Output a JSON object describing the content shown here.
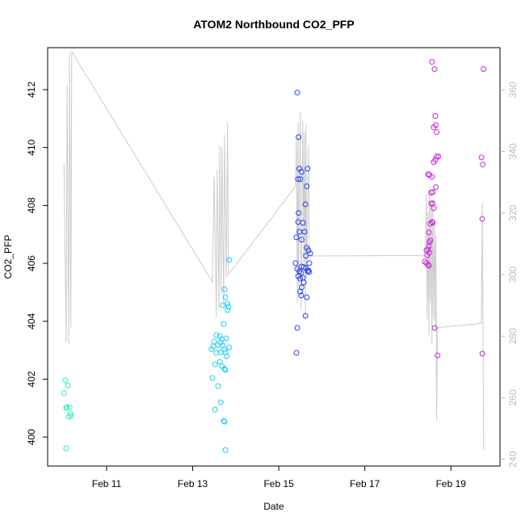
{
  "chart_data": {
    "type": "scatter",
    "title": "ATOM2 Northbound CO2_PFP",
    "x_label": "Date",
    "y_label": "CO2_PFP",
    "xlim": [
      9.63,
      20.14
    ],
    "xticks": [
      {
        "value": 11,
        "label": "Feb 11"
      },
      {
        "value": 13,
        "label": "Feb 13"
      },
      {
        "value": 15,
        "label": "Feb 15"
      },
      {
        "value": 17,
        "label": "Feb 17"
      },
      {
        "value": 19,
        "label": "Feb 19"
      }
    ],
    "ylim": [
      399.0,
      413.45
    ],
    "yticks": [
      400,
      402,
      404,
      406,
      408,
      410,
      412
    ],
    "y2lim": [
      237.8,
      373.7
    ],
    "y2ticks": [
      240,
      260,
      280,
      300,
      320,
      340,
      360
    ],
    "series": [
      {
        "color": "#33eec0",
        "x": [
          10.04,
          10.1,
          10.01,
          10.08,
          10.14,
          10.06,
          10.16,
          10.12,
          10.17,
          10.06
        ],
        "values": [
          401.96,
          401.79,
          401.51,
          401.03,
          401.03,
          401.01,
          400.81,
          400.7,
          400.73,
          399.61
        ]
      },
      {
        "color": "#22ccf0",
        "x": [
          13.85,
          13.74,
          13.76,
          13.7,
          13.81,
          13.81,
          13.83,
          13.72,
          13.55,
          13.63,
          13.68,
          13.78,
          13.5,
          13.48,
          13.59,
          13.65,
          13.7,
          13.44,
          13.55,
          13.65,
          13.74,
          13.85,
          13.79,
          13.52,
          13.68,
          13.76,
          13.76,
          13.63,
          13.74,
          13.46,
          13.59,
          13.65,
          13.52,
          13.72,
          13.74,
          13.76
        ],
        "values": [
          406.12,
          405.11,
          404.83,
          404.55,
          404.61,
          404.39,
          404.5,
          403.91,
          403.52,
          403.49,
          403.38,
          403.41,
          403.3,
          403.13,
          403.18,
          403.27,
          403.16,
          403.04,
          402.91,
          402.93,
          403.02,
          403.1,
          402.79,
          402.51,
          402.46,
          402.32,
          402.93,
          402.6,
          402.35,
          402.04,
          401.76,
          401.2,
          400.95,
          400.56,
          400.53,
          399.55
        ]
      },
      {
        "color": "#2244ee",
        "x": [
          15.43,
          15.46,
          15.48,
          15.53,
          15.67,
          15.45,
          15.5,
          15.65,
          15.62,
          15.46,
          15.45,
          15.56,
          15.48,
          15.6,
          15.53,
          15.41,
          15.65,
          15.69,
          15.63,
          15.73,
          15.71,
          15.39,
          15.53,
          15.58,
          15.63,
          15.43,
          15.48,
          15.67,
          15.52,
          15.71,
          15.45,
          15.69,
          15.56,
          15.5,
          15.58,
          15.53,
          15.5,
          15.52,
          15.65,
          15.62,
          15.43,
          15.41
        ],
        "values": [
          411.9,
          410.36,
          409.27,
          409.16,
          409.27,
          408.91,
          408.91,
          408.66,
          408.04,
          407.74,
          407.43,
          407.4,
          407.09,
          407.09,
          406.82,
          406.9,
          406.54,
          406.45,
          406.26,
          406.34,
          406.01,
          406.01,
          405.89,
          405.87,
          405.84,
          405.81,
          405.73,
          405.73,
          405.67,
          405.7,
          405.56,
          405.75,
          405.5,
          405.47,
          405.34,
          405.17,
          405.03,
          404.89,
          404.83,
          404.19,
          403.77,
          402.91
        ]
      },
      {
        "color": "#cc22dd",
        "x": [
          18.56,
          18.62,
          18.64,
          18.65,
          18.6,
          18.67,
          18.64,
          18.67,
          18.71,
          18.6,
          18.5,
          18.47,
          18.56,
          18.65,
          18.58,
          18.54,
          18.54,
          18.58,
          18.6,
          18.56,
          18.52,
          18.58,
          18.49,
          18.52,
          18.5,
          18.49,
          18.47,
          18.43,
          18.5,
          18.45,
          18.39,
          18.43,
          18.47,
          18.49,
          18.62,
          18.69,
          19.76,
          19.71,
          19.74,
          19.73,
          19.73
        ],
        "values": [
          412.96,
          412.71,
          411.09,
          410.78,
          410.7,
          410.53,
          409.58,
          409.69,
          409.69,
          409.5,
          409.05,
          409.08,
          408.99,
          408.63,
          408.46,
          408.44,
          408.07,
          408.07,
          407.91,
          407.43,
          407.37,
          407.4,
          407.07,
          406.79,
          406.73,
          406.59,
          406.48,
          406.45,
          406.37,
          406.28,
          406.06,
          406.01,
          405.95,
          405.92,
          403.77,
          402.82,
          412.71,
          409.66,
          409.41,
          407.54,
          402.88
        ]
      },
      {
        "type": "line",
        "axis": "y2",
        "color": "#cccccc",
        "x": [
          10.01,
          10.06,
          10.08,
          10.12,
          10.14,
          10.17,
          10.19,
          13.46,
          13.5,
          13.55,
          13.57,
          13.61,
          13.63,
          13.66,
          13.68,
          13.72,
          13.74,
          13.78,
          13.81,
          13.83,
          15.39,
          15.41,
          15.43,
          15.45,
          15.46,
          15.5,
          15.52,
          15.56,
          15.58,
          15.6,
          15.62,
          15.63,
          15.65,
          15.69,
          15.71,
          15.73,
          18.39,
          18.41,
          18.43,
          18.45,
          18.47,
          18.49,
          18.5,
          18.52,
          18.54,
          18.56,
          18.58,
          18.6,
          18.62,
          18.64,
          18.65,
          18.67,
          18.69,
          19.71,
          19.73,
          19.76
        ],
        "values": [
          336.1,
          278.0,
          361.4,
          277.4,
          372.2,
          282.8,
          372.4,
          297.6,
          331.8,
          286.0,
          333.9,
          288.2,
          342.0,
          293.6,
          341.5,
          289.5,
          345.5,
          299.0,
          349.3,
          300.0,
          328.6,
          344.7,
          290.9,
          349.6,
          296.3,
          352.8,
          288.2,
          350.1,
          303.0,
          346.1,
          285.5,
          348.7,
          298.9,
          342.0,
          309.7,
          306.0,
          306.2,
          312.4,
          325.9,
          285.5,
          320.5,
          280.1,
          328.6,
          290.9,
          323.2,
          277.4,
          324.5,
          285.5,
          317.8,
          282.8,
          312.4,
          252.7,
          282.8,
          284.1,
          323.2,
          243.2
        ]
      }
    ]
  }
}
